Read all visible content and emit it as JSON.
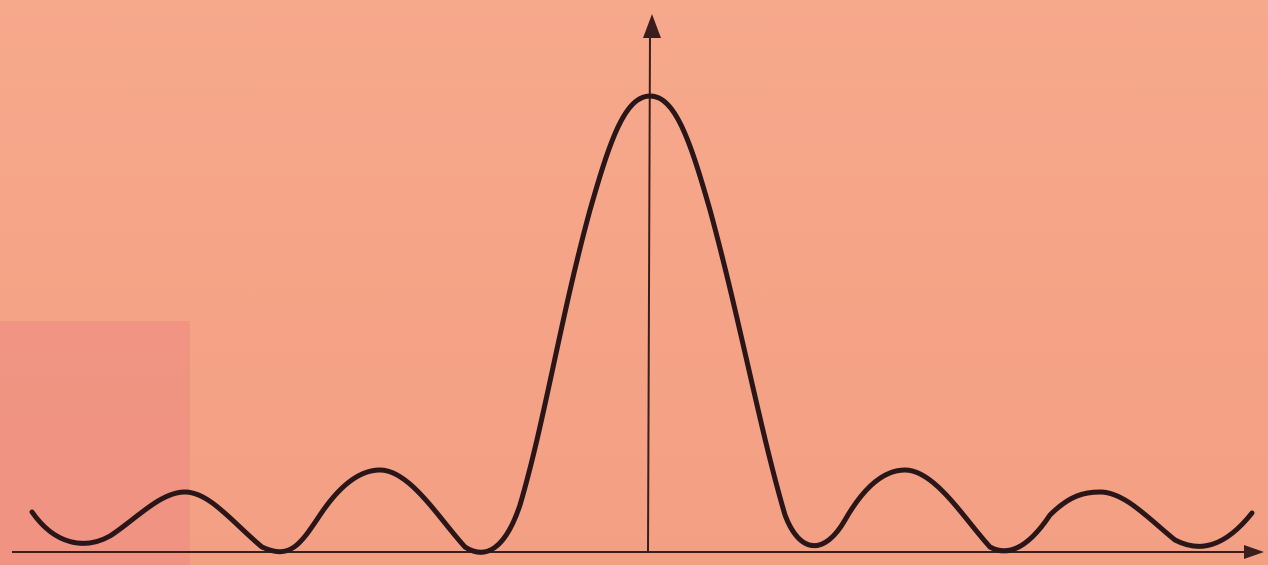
{
  "colors": {
    "background": "#f5a487",
    "corner_patch": "#ef8f82",
    "curve": "#2a1618",
    "axis": "#3a1e1e"
  },
  "diagram": {
    "type": "line",
    "description_shape": "sinc-squared diffraction intensity profile",
    "x_axis_arrow": true,
    "y_axis_arrow": true
  }
}
